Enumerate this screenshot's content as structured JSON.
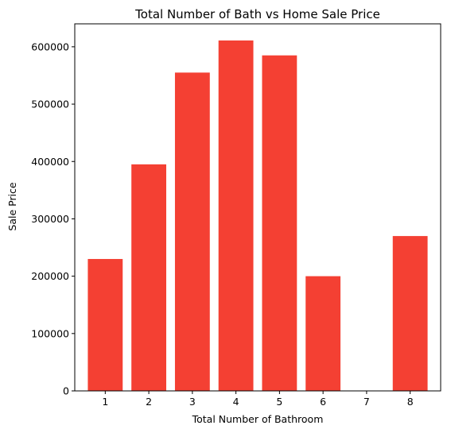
{
  "chart_data": {
    "type": "bar",
    "title": "Total Number of Bath vs Home Sale Price",
    "xlabel": "Total Number of Bathroom",
    "ylabel": "Sale Price",
    "categories": [
      1,
      2,
      3,
      4,
      5,
      6,
      7,
      8
    ],
    "x_ticks": [
      "1",
      "2",
      "3",
      "4",
      "5",
      "6",
      "7",
      "8"
    ],
    "values": [
      230000,
      395000,
      555000,
      611000,
      585000,
      200000,
      0,
      270000
    ],
    "ylim": [
      0,
      640000
    ],
    "xlim": [
      0.3,
      8.7
    ],
    "y_ticks": [
      0,
      100000,
      200000,
      300000,
      400000,
      500000,
      600000
    ],
    "y_tick_labels": [
      "0",
      "100000",
      "200000",
      "300000",
      "400000",
      "500000",
      "600000"
    ],
    "bar_color": "#f44033",
    "grid": false,
    "legend": "none"
  }
}
